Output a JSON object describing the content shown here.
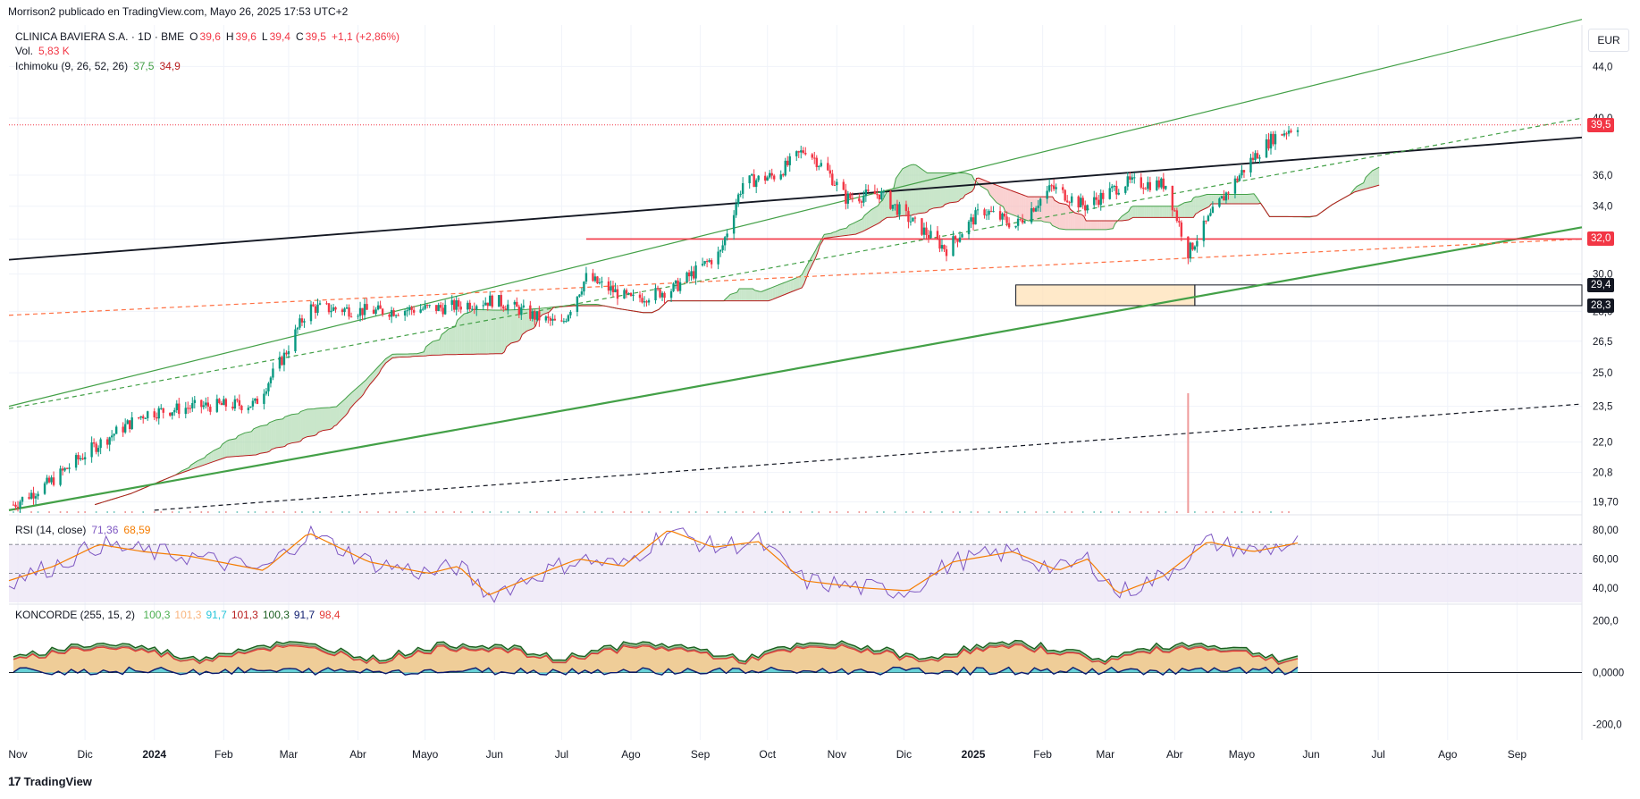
{
  "header": {
    "publisher_line": "Morrison2 publicado en TradingView.com, Mayo 26, 2025 17:53 UTC+2"
  },
  "legend": {
    "symbol": "CLINICA BAVIERA S.A. · 1D · BME",
    "o_label": "O",
    "o_value": "39,6",
    "h_label": "H",
    "h_value": "39,6",
    "l_label": "L",
    "l_value": "39,4",
    "c_label": "C",
    "c_value": "39,5",
    "change": "+1,1 (+2,86%)",
    "vol_label": "Vol.",
    "vol_value": "5,83 K",
    "ichimoku_label": "Ichimoku (9, 26, 52, 26)",
    "ichimoku_v1": "37,5",
    "ichimoku_v2": "34,9",
    "rsi_label": "RSI (14, close)",
    "rsi_v1": "71,36",
    "rsi_v2": "68,59",
    "koncorde_label": "KONCORDE (255, 15, 2)",
    "koncorde_values": [
      "100,3",
      "101,3",
      "91,7",
      "101,3",
      "100,3",
      "91,7",
      "98,4"
    ],
    "koncorde_colors": [
      "#4caf50",
      "#f9b47c",
      "#26c6da",
      "#b71c1c",
      "#1b5e20",
      "#0d1b6e",
      "#e53935"
    ]
  },
  "axis": {
    "currency": "EUR",
    "price_ticks": [
      "44,0",
      "40,0",
      "36,0",
      "34,0",
      "32,0",
      "30,0",
      "28,0",
      "26,5",
      "25,0",
      "23,5",
      "22,0",
      "20,8",
      "19,70"
    ],
    "rsi_ticks": [
      "80,00",
      "60,00",
      "40,00"
    ],
    "koncorde_ticks": [
      "200,0",
      "0,0000",
      "-200,0"
    ],
    "x_ticks": [
      "Nov",
      "Dic",
      "2024",
      "Feb",
      "Mar",
      "Abr",
      "Mayo",
      "Jun",
      "Jul",
      "Ago",
      "Sep",
      "Oct",
      "Nov",
      "Dic",
      "2025",
      "Feb",
      "Mar",
      "Abr",
      "Mayo",
      "Jun",
      "Jul",
      "Ago",
      "Sep"
    ],
    "bold_x_ticks": [
      "2024",
      "2025"
    ]
  },
  "price_tags": [
    {
      "text": "39,5",
      "color": "#f23645"
    },
    {
      "text": "32,0",
      "color": "#f23645"
    },
    {
      "text": "29,4",
      "color": "#131722"
    },
    {
      "text": "28,3",
      "color": "#131722"
    }
  ],
  "footer": {
    "brand": "TradingView",
    "logo": "17"
  },
  "colors": {
    "up": "#089981",
    "down": "#f23645",
    "cloud_bull": "#a5d6a7",
    "cloud_bear": "#f7b3b3",
    "channel": "#43a047",
    "rsi": "#7e57c2",
    "rsi_ma": "#f57c00"
  },
  "chart_data": {
    "type": "candlestick",
    "symbol": "CLINICA BAVIERA S.A.",
    "interval": "1D",
    "y_scale": "log",
    "ylim": [
      19.3,
      47.5
    ],
    "x_range": [
      "2023-10-28",
      "2025-09-30"
    ],
    "last": {
      "open": 39.6,
      "high": 39.6,
      "low": 39.4,
      "close": 39.5
    },
    "close_path": [
      {
        "date": "2023-10-30",
        "close": 19.6
      },
      {
        "date": "2023-11-15",
        "close": 20.4
      },
      {
        "date": "2023-12-05",
        "close": 21.8
      },
      {
        "date": "2023-12-28",
        "close": 23.2
      },
      {
        "date": "2024-01-20",
        "close": 23.5
      },
      {
        "date": "2024-02-15",
        "close": 23.6
      },
      {
        "date": "2024-02-28",
        "close": 25.8
      },
      {
        "date": "2024-03-10",
        "close": 28.2
      },
      {
        "date": "2024-04-10",
        "close": 28.0
      },
      {
        "date": "2024-05-10",
        "close": 28.2
      },
      {
        "date": "2024-06-01",
        "close": 28.6
      },
      {
        "date": "2024-06-20",
        "close": 27.7
      },
      {
        "date": "2024-07-01",
        "close": 27.3
      },
      {
        "date": "2024-07-12",
        "close": 29.8
      },
      {
        "date": "2024-08-01",
        "close": 28.6
      },
      {
        "date": "2024-08-20",
        "close": 29.2
      },
      {
        "date": "2024-09-10",
        "close": 31.2
      },
      {
        "date": "2024-09-20",
        "close": 35.5
      },
      {
        "date": "2024-10-05",
        "close": 36.0
      },
      {
        "date": "2024-10-18",
        "close": 37.8
      },
      {
        "date": "2024-10-28",
        "close": 36.2
      },
      {
        "date": "2024-11-05",
        "close": 34.5
      },
      {
        "date": "2024-11-20",
        "close": 34.8
      },
      {
        "date": "2024-12-05",
        "close": 33.0
      },
      {
        "date": "2024-12-20",
        "close": 31.4
      },
      {
        "date": "2025-01-05",
        "close": 33.8
      },
      {
        "date": "2025-01-20",
        "close": 32.8
      },
      {
        "date": "2025-02-05",
        "close": 35.2
      },
      {
        "date": "2025-02-20",
        "close": 34.0
      },
      {
        "date": "2025-03-10",
        "close": 35.5
      },
      {
        "date": "2025-03-28",
        "close": 35.4
      },
      {
        "date": "2025-04-07",
        "close": 31.2
      },
      {
        "date": "2025-04-20",
        "close": 34.0
      },
      {
        "date": "2025-05-05",
        "close": 37.0
      },
      {
        "date": "2025-05-15",
        "close": 38.6
      },
      {
        "date": "2025-05-26",
        "close": 39.5
      }
    ],
    "ichimoku": {
      "params": [
        9,
        26,
        52,
        26
      ],
      "values": [
        37.5,
        34.9
      ]
    },
    "levels": [
      {
        "price": 39.5,
        "style": "dotted",
        "color": "#f23645"
      },
      {
        "price": 32.0,
        "from": "2024-07-12",
        "style": "solid",
        "color": "#f23645"
      }
    ],
    "zone": {
      "from": "2025-01-20",
      "to": "2025-04-10",
      "top": 29.4,
      "bottom": 28.3
    },
    "trendlines": [
      {
        "style": "solid",
        "color": "#131722",
        "points": [
          [
            "2023-10-28",
            30.8
          ],
          [
            "2025-09-30",
            38.6
          ]
        ]
      },
      {
        "style": "solid",
        "color": "#43a047",
        "points": [
          [
            "2023-10-28",
            23.5
          ],
          [
            "2025-09-30",
            48.0
          ]
        ]
      },
      {
        "style": "solid-thick",
        "color": "#43a047",
        "points": [
          [
            "2023-10-28",
            19.4
          ],
          [
            "2025-09-30",
            32.7
          ]
        ]
      },
      {
        "style": "dashed",
        "color": "#43a047",
        "points": [
          [
            "2023-10-28",
            23.4
          ],
          [
            "2025-09-30",
            40.0
          ]
        ]
      },
      {
        "style": "dashed",
        "color": "#ff7043",
        "points": [
          [
            "2023-10-28",
            27.8
          ],
          [
            "2025-09-30",
            32.0
          ]
        ]
      },
      {
        "style": "dashed",
        "color": "#131722",
        "points": [
          [
            "2024-01-01",
            19.4
          ],
          [
            "2025-09-30",
            23.6
          ]
        ]
      }
    ],
    "volume": {
      "value": "5,83 K",
      "spike_date": "2025-04-07"
    },
    "rsi": {
      "period": 14,
      "value": 71.36,
      "ma": 68.59,
      "ylim": [
        30,
        88
      ],
      "bands": [
        70,
        50
      ],
      "path": [
        [
          0.0,
          45
        ],
        [
          0.03,
          55
        ],
        [
          0.06,
          70
        ],
        [
          0.09,
          65
        ],
        [
          0.12,
          62
        ],
        [
          0.17,
          52
        ],
        [
          0.2,
          78
        ],
        [
          0.24,
          58
        ],
        [
          0.28,
          50
        ],
        [
          0.3,
          55
        ],
        [
          0.32,
          35
        ],
        [
          0.35,
          48
        ],
        [
          0.38,
          60
        ],
        [
          0.41,
          55
        ],
        [
          0.44,
          80
        ],
        [
          0.47,
          68
        ],
        [
          0.5,
          72
        ],
        [
          0.53,
          45
        ],
        [
          0.57,
          40
        ],
        [
          0.6,
          38
        ],
        [
          0.63,
          58
        ],
        [
          0.67,
          65
        ],
        [
          0.7,
          52
        ],
        [
          0.72,
          60
        ],
        [
          0.74,
          36
        ],
        [
          0.77,
          48
        ],
        [
          0.8,
          72
        ],
        [
          0.83,
          65
        ],
        [
          0.86,
          71
        ]
      ]
    },
    "koncorde": {
      "ylim": [
        -260,
        250
      ],
      "values": [
        100.3,
        101.3,
        91.7,
        101.3,
        100.3,
        91.7,
        98.4
      ]
    }
  }
}
